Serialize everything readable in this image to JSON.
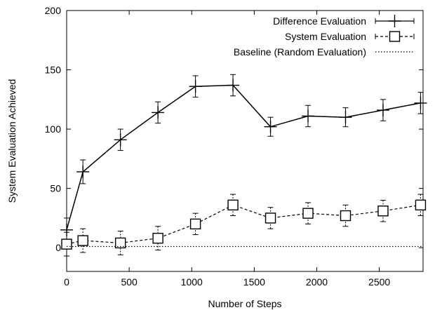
{
  "chart_data": {
    "type": "line",
    "title": "",
    "xlabel": "Number of Steps",
    "ylabel": "System Evaluation Achieved",
    "xlim": [
      0,
      2850
    ],
    "ylim": [
      -20,
      200
    ],
    "x_ticks": [
      0,
      500,
      1000,
      1500,
      2000,
      2500
    ],
    "y_ticks": [
      0,
      50,
      100,
      150,
      200
    ],
    "grid": false,
    "legend_position": "top-right",
    "series": [
      {
        "name": "Difference Evaluation",
        "style": "solid",
        "marker": "plus",
        "color": "#000000",
        "x": [
          0,
          130,
          430,
          730,
          1030,
          1330,
          1630,
          1930,
          2230,
          2530,
          2830
        ],
        "y": [
          15,
          64,
          91,
          114,
          136,
          137,
          102,
          111,
          110,
          116,
          122
        ],
        "err": [
          10,
          10,
          9,
          9,
          9,
          9,
          8,
          9,
          8,
          9,
          9
        ]
      },
      {
        "name": "System Evaluation",
        "style": "dashed",
        "marker": "square",
        "color": "#000000",
        "x": [
          0,
          130,
          430,
          730,
          1030,
          1330,
          1630,
          1930,
          2230,
          2530,
          2830
        ],
        "y": [
          3,
          6,
          4,
          8,
          20,
          36,
          25,
          29,
          27,
          31,
          36
        ],
        "err": [
          10,
          10,
          10,
          10,
          9,
          9,
          9,
          9,
          9,
          9,
          9
        ]
      },
      {
        "name": "Baseline (Random Evaluation)",
        "style": "dotted",
        "marker": "none",
        "color": "#000000",
        "x": [
          0,
          2850
        ],
        "y": [
          1,
          1
        ]
      }
    ]
  }
}
